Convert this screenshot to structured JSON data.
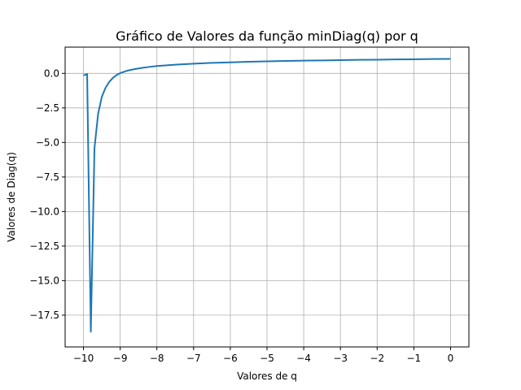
{
  "chart_data": {
    "type": "line",
    "title": "Gráfico de Valores da função minDiag(q) por q",
    "xlabel": "Valores de q",
    "ylabel": "Valores de Diag(q)",
    "xlim": [
      -10.5,
      0.5
    ],
    "ylim": [
      -19.8,
      1.9
    ],
    "xticks": [
      -10,
      -9,
      -8,
      -7,
      -6,
      -5,
      -4,
      -3,
      -2,
      -1,
      0
    ],
    "xtick_labels": [
      "−10",
      "−9",
      "−8",
      "−7",
      "−6",
      "−5",
      "−4",
      "−3",
      "−2",
      "−1",
      "0"
    ],
    "yticks": [
      0,
      -2.5,
      -5,
      -7.5,
      -10,
      -12.5,
      -15,
      -17.5
    ],
    "ytick_labels": [
      "0.0",
      "−2.5",
      "−5.0",
      "−7.5",
      "−10.0",
      "−12.5",
      "−15.0",
      "−17.5"
    ],
    "grid": true,
    "color": "#1f77b4",
    "series": [
      {
        "x": [
          -10.0,
          -9.9,
          -9.8,
          -9.7,
          -9.6,
          -9.5,
          -9.4,
          -9.3,
          -9.2,
          -9.1,
          -9.0,
          -8.8,
          -8.6,
          -8.4,
          -8.2,
          -8.0,
          -7.5,
          -7.0,
          -6.5,
          -6.0,
          -5.5,
          -5.0,
          -4.5,
          -4.0,
          -3.5,
          -3.0,
          -2.5,
          -2.0,
          -1.5,
          -1.0,
          -0.5,
          0.0
        ],
        "y": [
          -0.15,
          -0.05,
          -18.7,
          -5.4,
          -2.9,
          -1.7,
          -1.05,
          -0.62,
          -0.33,
          -0.12,
          0.02,
          0.2,
          0.31,
          0.4,
          0.47,
          0.53,
          0.63,
          0.7,
          0.76,
          0.8,
          0.84,
          0.87,
          0.9,
          0.92,
          0.94,
          0.96,
          0.98,
          0.99,
          1.01,
          1.02,
          1.04,
          1.05
        ]
      }
    ]
  }
}
